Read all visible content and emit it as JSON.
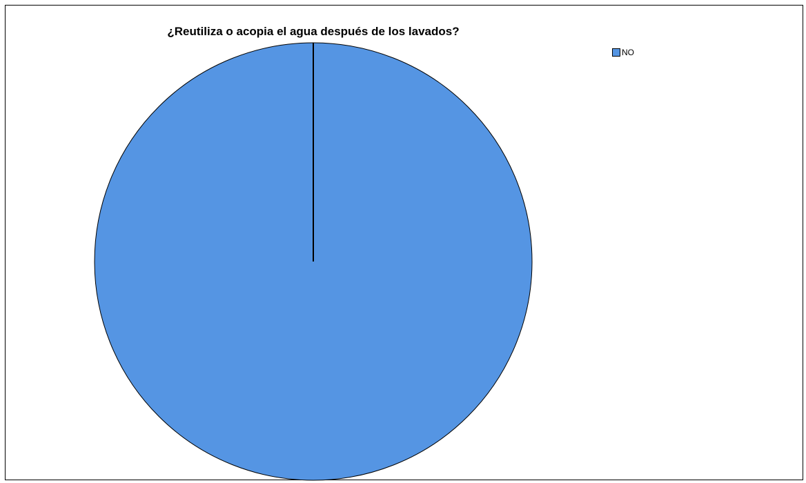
{
  "chart_data": {
    "type": "pie",
    "title": "¿Reutiliza o acopia el agua después de los lavados?",
    "categories": [
      "NO"
    ],
    "values": [
      100
    ],
    "colors": [
      "#5595e3"
    ],
    "legend": {
      "placement": "top-right",
      "entries": [
        "NO"
      ]
    }
  }
}
